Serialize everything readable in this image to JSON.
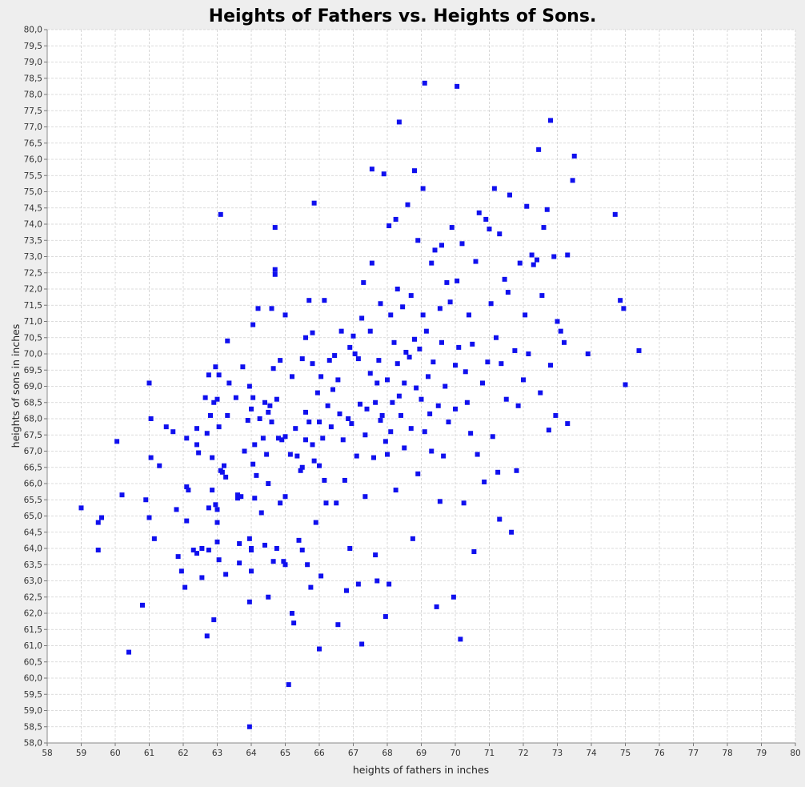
{
  "chart_data": {
    "type": "scatter",
    "title": "Heights of Fathers vs. Heights of Sons.",
    "xlabel": "heights of fathers in inches",
    "ylabel": "heights of sons in inches",
    "xlim": [
      58,
      80
    ],
    "ylim": [
      58.0,
      80.0
    ],
    "x_ticks": [
      "58",
      "59",
      "60",
      "61",
      "62",
      "63",
      "64",
      "65",
      "66",
      "67",
      "68",
      "69",
      "70",
      "71",
      "72",
      "73",
      "74",
      "75",
      "76",
      "77",
      "78",
      "79",
      "80"
    ],
    "y_ticks": [
      "58,0",
      "58,5",
      "59,0",
      "59,5",
      "60,0",
      "60,5",
      "61,0",
      "61,5",
      "62,0",
      "62,5",
      "63,0",
      "63,5",
      "64,0",
      "64,5",
      "65,0",
      "65,5",
      "66,0",
      "66,5",
      "67,0",
      "67,5",
      "68,0",
      "68,5",
      "69,0",
      "69,5",
      "70,0",
      "70,5",
      "71,0",
      "71,5",
      "72,0",
      "72,5",
      "73,0",
      "73,5",
      "74,0",
      "74,5",
      "75,0",
      "75,5",
      "76,0",
      "76,5",
      "77,0",
      "77,5",
      "78,0",
      "78,5",
      "79,0",
      "79,5",
      "80,0"
    ],
    "grid": true,
    "legend": "none",
    "marker": "square",
    "colors": {
      "points": "#1010ee",
      "plot_background": "#ffffff",
      "grid": "#cfcfcf",
      "frame": "#eeeeee"
    },
    "points": [
      [
        59.0,
        65.25
      ],
      [
        59.5,
        63.95
      ],
      [
        59.5,
        64.8
      ],
      [
        59.6,
        64.95
      ],
      [
        60.05,
        67.3
      ],
      [
        60.2,
        65.65
      ],
      [
        60.4,
        60.8
      ],
      [
        60.8,
        62.25
      ],
      [
        60.9,
        65.5
      ],
      [
        61.0,
        69.1
      ],
      [
        61.0,
        64.95
      ],
      [
        61.05,
        68.0
      ],
      [
        61.05,
        66.8
      ],
      [
        61.15,
        64.3
      ],
      [
        61.3,
        66.55
      ],
      [
        61.5,
        67.75
      ],
      [
        61.7,
        67.6
      ],
      [
        61.8,
        65.2
      ],
      [
        61.85,
        63.75
      ],
      [
        61.95,
        63.3
      ],
      [
        62.05,
        62.8
      ],
      [
        62.1,
        65.9
      ],
      [
        62.1,
        64.85
      ],
      [
        62.15,
        65.8
      ],
      [
        62.1,
        67.4
      ],
      [
        62.3,
        63.95
      ],
      [
        62.4,
        63.85
      ],
      [
        62.4,
        67.2
      ],
      [
        62.4,
        67.7
      ],
      [
        62.45,
        66.95
      ],
      [
        62.55,
        64.0
      ],
      [
        62.55,
        63.1
      ],
      [
        62.65,
        68.65
      ],
      [
        62.7,
        61.3
      ],
      [
        62.7,
        67.55
      ],
      [
        62.75,
        69.35
      ],
      [
        62.75,
        65.25
      ],
      [
        62.75,
        63.95
      ],
      [
        62.8,
        68.1
      ],
      [
        62.85,
        65.8
      ],
      [
        62.85,
        66.8
      ],
      [
        62.9,
        68.5
      ],
      [
        62.95,
        69.6
      ],
      [
        62.9,
        61.8
      ],
      [
        62.95,
        65.35
      ],
      [
        63.0,
        65.2
      ],
      [
        63.0,
        64.2
      ],
      [
        63.0,
        64.8
      ],
      [
        63.05,
        69.35
      ],
      [
        63.0,
        68.6
      ],
      [
        63.05,
        67.75
      ],
      [
        63.05,
        63.65
      ],
      [
        63.1,
        74.3
      ],
      [
        63.1,
        66.4
      ],
      [
        63.15,
        66.35
      ],
      [
        63.2,
        66.55
      ],
      [
        63.25,
        66.2
      ],
      [
        63.25,
        63.2
      ],
      [
        63.3,
        68.1
      ],
      [
        63.3,
        70.4
      ],
      [
        63.35,
        69.1
      ],
      [
        63.55,
        68.65
      ],
      [
        63.6,
        65.65
      ],
      [
        63.6,
        65.55
      ],
      [
        63.65,
        64.15
      ],
      [
        63.65,
        63.55
      ],
      [
        63.7,
        65.6
      ],
      [
        63.75,
        69.6
      ],
      [
        63.8,
        67.0
      ],
      [
        63.9,
        67.95
      ],
      [
        63.95,
        64.3
      ],
      [
        64.0,
        63.95
      ],
      [
        64.0,
        63.3
      ],
      [
        63.95,
        58.5
      ],
      [
        63.95,
        62.35
      ],
      [
        64.0,
        64.0
      ],
      [
        63.95,
        69.0
      ],
      [
        64.0,
        68.3
      ],
      [
        64.05,
        70.9
      ],
      [
        64.05,
        68.65
      ],
      [
        64.05,
        66.6
      ],
      [
        64.1,
        67.2
      ],
      [
        64.1,
        65.55
      ],
      [
        64.15,
        66.25
      ],
      [
        64.2,
        71.4
      ],
      [
        64.25,
        68.0
      ],
      [
        64.3,
        65.1
      ],
      [
        64.35,
        67.4
      ],
      [
        64.4,
        68.5
      ],
      [
        64.4,
        64.1
      ],
      [
        64.45,
        66.9
      ],
      [
        64.5,
        68.2
      ],
      [
        64.5,
        66.0
      ],
      [
        64.55,
        68.4
      ],
      [
        64.5,
        62.5
      ],
      [
        64.6,
        71.4
      ],
      [
        64.6,
        67.9
      ],
      [
        64.65,
        69.55
      ],
      [
        64.65,
        63.6
      ],
      [
        64.7,
        73.9
      ],
      [
        64.7,
        72.6
      ],
      [
        64.7,
        72.45
      ],
      [
        64.75,
        68.6
      ],
      [
        64.75,
        64.0
      ],
      [
        64.8,
        67.4
      ],
      [
        64.85,
        69.8
      ],
      [
        64.85,
        65.4
      ],
      [
        64.9,
        67.35
      ],
      [
        64.95,
        63.6
      ],
      [
        65.0,
        67.45
      ],
      [
        65.0,
        71.2
      ],
      [
        65.0,
        65.6
      ],
      [
        65.0,
        63.5
      ],
      [
        65.1,
        59.8
      ],
      [
        65.15,
        66.9
      ],
      [
        65.2,
        62.0
      ],
      [
        65.2,
        69.3
      ],
      [
        65.25,
        61.7
      ],
      [
        65.3,
        67.7
      ],
      [
        65.35,
        66.85
      ],
      [
        65.4,
        64.25
      ],
      [
        65.45,
        66.4
      ],
      [
        65.5,
        69.85
      ],
      [
        65.5,
        66.5
      ],
      [
        65.5,
        63.95
      ],
      [
        65.6,
        70.5
      ],
      [
        65.6,
        68.2
      ],
      [
        65.6,
        67.35
      ],
      [
        65.65,
        63.5
      ],
      [
        65.7,
        71.65
      ],
      [
        65.7,
        67.9
      ],
      [
        65.75,
        62.8
      ],
      [
        65.8,
        70.65
      ],
      [
        65.8,
        69.7
      ],
      [
        65.8,
        67.2
      ],
      [
        65.85,
        74.65
      ],
      [
        65.85,
        66.7
      ],
      [
        65.9,
        64.8
      ],
      [
        65.95,
        68.8
      ],
      [
        66.0,
        67.9
      ],
      [
        66.0,
        66.55
      ],
      [
        66.05,
        63.15
      ],
      [
        66.0,
        60.9
      ],
      [
        66.05,
        69.3
      ],
      [
        66.1,
        67.4
      ],
      [
        66.15,
        71.65
      ],
      [
        66.15,
        66.1
      ],
      [
        66.2,
        65.4
      ],
      [
        66.25,
        68.4
      ],
      [
        66.3,
        69.8
      ],
      [
        66.35,
        67.75
      ],
      [
        66.4,
        68.9
      ],
      [
        66.45,
        69.95
      ],
      [
        66.5,
        65.4
      ],
      [
        66.55,
        69.2
      ],
      [
        66.55,
        61.65
      ],
      [
        66.6,
        68.15
      ],
      [
        66.65,
        70.7
      ],
      [
        66.7,
        67.35
      ],
      [
        66.75,
        66.1
      ],
      [
        66.8,
        62.7
      ],
      [
        66.85,
        68.0
      ],
      [
        66.9,
        70.2
      ],
      [
        66.9,
        64.0
      ],
      [
        66.95,
        67.85
      ],
      [
        67.0,
        70.55
      ],
      [
        67.05,
        70.0
      ],
      [
        67.1,
        66.85
      ],
      [
        67.15,
        69.85
      ],
      [
        67.15,
        62.9
      ],
      [
        67.2,
        68.45
      ],
      [
        67.25,
        71.1
      ],
      [
        67.25,
        61.05
      ],
      [
        67.3,
        72.2
      ],
      [
        67.35,
        67.5
      ],
      [
        67.35,
        65.6
      ],
      [
        67.4,
        68.3
      ],
      [
        67.5,
        70.7
      ],
      [
        67.5,
        69.4
      ],
      [
        67.55,
        75.7
      ],
      [
        67.55,
        72.8
      ],
      [
        67.6,
        66.8
      ],
      [
        67.65,
        68.5
      ],
      [
        67.65,
        63.8
      ],
      [
        67.7,
        69.1
      ],
      [
        67.7,
        63.0
      ],
      [
        67.75,
        69.8
      ],
      [
        67.8,
        67.95
      ],
      [
        67.8,
        71.55
      ],
      [
        67.85,
        68.1
      ],
      [
        67.9,
        75.55
      ],
      [
        67.95,
        67.3
      ],
      [
        67.95,
        61.9
      ],
      [
        68.0,
        69.2
      ],
      [
        68.0,
        66.9
      ],
      [
        68.05,
        73.95
      ],
      [
        68.05,
        62.9
      ],
      [
        68.1,
        71.2
      ],
      [
        68.1,
        67.6
      ],
      [
        68.15,
        68.5
      ],
      [
        68.2,
        70.35
      ],
      [
        68.25,
        74.15
      ],
      [
        68.25,
        65.8
      ],
      [
        68.3,
        72.0
      ],
      [
        68.3,
        69.7
      ],
      [
        68.35,
        77.15
      ],
      [
        68.35,
        68.7
      ],
      [
        68.4,
        68.1
      ],
      [
        68.45,
        71.45
      ],
      [
        68.5,
        69.1
      ],
      [
        68.5,
        67.1
      ],
      [
        68.55,
        70.05
      ],
      [
        68.6,
        74.6
      ],
      [
        68.65,
        69.9
      ],
      [
        68.7,
        67.7
      ],
      [
        68.7,
        71.8
      ],
      [
        68.75,
        64.3
      ],
      [
        68.8,
        75.65
      ],
      [
        68.8,
        70.45
      ],
      [
        68.85,
        68.95
      ],
      [
        68.9,
        73.5
      ],
      [
        68.9,
        66.3
      ],
      [
        68.95,
        70.15
      ],
      [
        69.0,
        68.6
      ],
      [
        69.05,
        75.1
      ],
      [
        69.05,
        71.2
      ],
      [
        69.1,
        78.35
      ],
      [
        69.1,
        67.6
      ],
      [
        69.15,
        70.7
      ],
      [
        69.2,
        69.3
      ],
      [
        69.25,
        68.15
      ],
      [
        69.3,
        72.8
      ],
      [
        69.3,
        67.0
      ],
      [
        69.35,
        69.75
      ],
      [
        69.4,
        73.2
      ],
      [
        69.45,
        62.2
      ],
      [
        69.5,
        68.4
      ],
      [
        69.55,
        71.4
      ],
      [
        69.55,
        65.45
      ],
      [
        69.6,
        70.35
      ],
      [
        69.6,
        73.35
      ],
      [
        69.65,
        66.85
      ],
      [
        69.7,
        69.0
      ],
      [
        69.75,
        72.2
      ],
      [
        69.8,
        67.9
      ],
      [
        69.85,
        71.6
      ],
      [
        69.9,
        73.9
      ],
      [
        69.95,
        62.5
      ],
      [
        70.0,
        69.65
      ],
      [
        70.0,
        68.3
      ],
      [
        70.05,
        78.25
      ],
      [
        70.05,
        72.25
      ],
      [
        70.1,
        70.2
      ],
      [
        70.15,
        61.2
      ],
      [
        70.2,
        73.4
      ],
      [
        70.25,
        65.4
      ],
      [
        70.3,
        69.45
      ],
      [
        70.35,
        68.5
      ],
      [
        70.4,
        71.2
      ],
      [
        70.45,
        67.55
      ],
      [
        70.5,
        70.3
      ],
      [
        70.55,
        63.9
      ],
      [
        70.6,
        72.85
      ],
      [
        70.65,
        66.9
      ],
      [
        70.7,
        74.35
      ],
      [
        70.8,
        69.1
      ],
      [
        70.85,
        66.05
      ],
      [
        70.9,
        74.15
      ],
      [
        70.95,
        69.75
      ],
      [
        71.0,
        73.85
      ],
      [
        71.05,
        71.55
      ],
      [
        71.1,
        67.45
      ],
      [
        71.15,
        75.1
      ],
      [
        71.2,
        70.5
      ],
      [
        71.25,
        66.35
      ],
      [
        71.3,
        73.7
      ],
      [
        71.3,
        64.9
      ],
      [
        71.35,
        69.7
      ],
      [
        71.45,
        72.3
      ],
      [
        71.5,
        68.6
      ],
      [
        71.55,
        71.9
      ],
      [
        71.6,
        74.9
      ],
      [
        71.65,
        64.5
      ],
      [
        71.75,
        70.1
      ],
      [
        71.8,
        66.4
      ],
      [
        71.85,
        68.4
      ],
      [
        71.9,
        72.8
      ],
      [
        72.0,
        69.2
      ],
      [
        72.05,
        71.2
      ],
      [
        72.1,
        74.55
      ],
      [
        72.15,
        70.0
      ],
      [
        72.25,
        73.05
      ],
      [
        72.3,
        72.75
      ],
      [
        72.4,
        72.9
      ],
      [
        72.45,
        76.3
      ],
      [
        72.5,
        68.8
      ],
      [
        72.55,
        71.8
      ],
      [
        72.6,
        73.9
      ],
      [
        72.7,
        74.45
      ],
      [
        72.75,
        67.65
      ],
      [
        72.8,
        77.2
      ],
      [
        72.8,
        69.65
      ],
      [
        72.9,
        73.0
      ],
      [
        72.95,
        68.1
      ],
      [
        73.0,
        71.0
      ],
      [
        73.1,
        70.7
      ],
      [
        73.2,
        70.35
      ],
      [
        73.3,
        73.05
      ],
      [
        73.3,
        67.85
      ],
      [
        73.45,
        75.35
      ],
      [
        73.5,
        76.1
      ],
      [
        73.9,
        70.0
      ],
      [
        74.7,
        74.3
      ],
      [
        74.85,
        71.65
      ],
      [
        74.95,
        71.4
      ],
      [
        75.0,
        69.05
      ],
      [
        75.4,
        70.1
      ]
    ]
  }
}
